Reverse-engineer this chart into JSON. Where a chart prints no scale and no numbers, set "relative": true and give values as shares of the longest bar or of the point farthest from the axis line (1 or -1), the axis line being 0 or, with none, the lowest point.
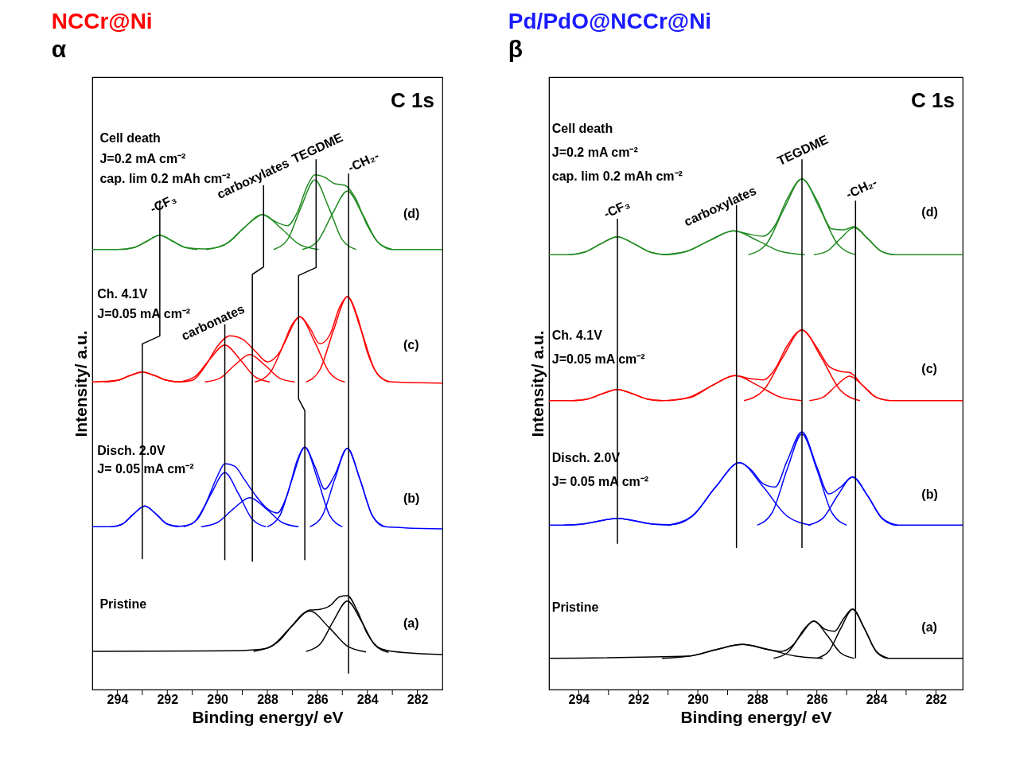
{
  "chart_data": [
    {
      "type": "line",
      "title": "NCCr@Ni",
      "xlabel": "Binding energy/ eV",
      "ylabel": "Intensity/ a.u.",
      "relative": true,
      "xlim": [
        295,
        281
      ],
      "xticks": [
        294,
        {
          "value": 293,
          "label": null
        },
        292,
        {
          "value": 291,
          "label": null
        },
        290,
        {
          "value": 289,
          "label": null
        },
        288,
        {
          "value": 287,
          "label": null
        },
        286,
        {
          "value": 285,
          "label": null
        },
        284,
        {
          "value": 283,
          "label": null
        },
        282
      ],
      "series": [
        {
          "color": "#228b22",
          "x": [
            295,
            294,
            293.3,
            292.8,
            292.3,
            291.8,
            291.3,
            290.5,
            290,
            289.5,
            289,
            288.5,
            288.2,
            287.7,
            287.2,
            286.8,
            286.4,
            286.1,
            285.7,
            285.3,
            284.9,
            284.5,
            284,
            283.5,
            283,
            281
          ],
          "values": [
            0.83,
            0.83,
            0.834,
            0.846,
            0.857,
            0.846,
            0.834,
            0.831,
            0.834,
            0.845,
            0.868,
            0.888,
            0.896,
            0.883,
            0.875,
            0.9,
            0.95,
            0.971,
            0.966,
            0.954,
            0.951,
            0.929,
            0.875,
            0.84,
            0.83,
            0.83
          ]
        },
        {
          "color": "#228b22",
          "x": [
            293.8,
            293.3,
            292.8,
            292.3,
            291.8,
            291.3,
            290.8
          ],
          "values": [
            0.83,
            0.834,
            0.846,
            0.857,
            0.846,
            0.834,
            0.83
          ]
        },
        {
          "color": "#228b22",
          "x": [
            290.45,
            289.7,
            288.95,
            288.2,
            287.45,
            286.7,
            285.95
          ],
          "values": [
            0.83,
            0.839,
            0.87,
            0.896,
            0.87,
            0.839,
            0.83
          ]
        },
        {
          "color": "#228b22",
          "x": [
            287.75,
            287.2,
            286.65,
            286.1,
            285.55,
            285,
            284.45
          ],
          "values": [
            0.83,
            0.848,
            0.91,
            0.961,
            0.91,
            0.848,
            0.83
          ]
        },
        {
          "color": "#228b22",
          "x": [
            286.6,
            286,
            285.4,
            284.8,
            284.2,
            283.6,
            283
          ],
          "values": [
            0.83,
            0.845,
            0.897,
            0.94,
            0.897,
            0.845,
            0.83
          ]
        },
        {
          "color": "#ff0000",
          "x": [
            295,
            294,
            293.5,
            293,
            292.5,
            292,
            291.5,
            291,
            290.5,
            290,
            289.5,
            289,
            288.5,
            288,
            287.5,
            287,
            286.7,
            286.3,
            285.9,
            285.5,
            285.1,
            284.8,
            284.4,
            284,
            283.5,
            283,
            281
          ],
          "values": [
            0.58,
            0.583,
            0.592,
            0.599,
            0.592,
            0.583,
            0.58,
            0.583,
            0.609,
            0.647,
            0.667,
            0.661,
            0.639,
            0.618,
            0.637,
            0.689,
            0.703,
            0.682,
            0.652,
            0.669,
            0.722,
            0.741,
            0.704,
            0.636,
            0.59,
            0.58,
            0.578
          ]
        },
        {
          "color": "#ff0000",
          "x": [
            294.5,
            294,
            293.5,
            293,
            292.5,
            292,
            291.5
          ],
          "values": [
            0.58,
            0.583,
            0.592,
            0.599,
            0.592,
            0.583,
            0.58
          ]
        },
        {
          "color": "#ff0000",
          "x": [
            291.5,
            290.9,
            290.3,
            289.7,
            289.1,
            288.5,
            287.9
          ],
          "values": [
            0.58,
            0.59,
            0.623,
            0.65,
            0.623,
            0.59,
            0.58
          ]
        },
        {
          "color": "#ff0000",
          "x": [
            290.5,
            289.9,
            289.3,
            288.7,
            288.1,
            287.5,
            286.9
          ],
          "values": [
            0.58,
            0.587,
            0.612,
            0.632,
            0.612,
            0.587,
            0.58
          ]
        },
        {
          "color": "#ff0000",
          "x": [
            288.5,
            287.9,
            287.3,
            286.7,
            286.1,
            285.5,
            284.9
          ],
          "values": [
            0.58,
            0.597,
            0.655,
            0.703,
            0.655,
            0.597,
            0.58
          ]
        },
        {
          "color": "#ff0000",
          "x": [
            286.45,
            285.9,
            285.35,
            284.8,
            284.25,
            283.7,
            283.15
          ],
          "values": [
            0.58,
            0.603,
            0.678,
            0.741,
            0.678,
            0.603,
            0.58
          ]
        },
        {
          "color": "#0000ff",
          "x": [
            295,
            294.2,
            293.8,
            293.35,
            292.9,
            292.45,
            292,
            291.5,
            291,
            290.5,
            290,
            289.7,
            289.3,
            288.9,
            288.5,
            288,
            287.6,
            287.2,
            286.8,
            286.5,
            286.1,
            285.7,
            285.3,
            284.8,
            284.3,
            283.8,
            283.3,
            281
          ],
          "values": [
            0.307,
            0.307,
            0.312,
            0.331,
            0.346,
            0.331,
            0.312,
            0.308,
            0.313,
            0.347,
            0.402,
            0.426,
            0.421,
            0.395,
            0.368,
            0.341,
            0.333,
            0.368,
            0.433,
            0.457,
            0.421,
            0.378,
            0.405,
            0.455,
            0.397,
            0.328,
            0.307,
            0.303
          ]
        },
        {
          "color": "#0000ff",
          "x": [
            294.25,
            293.8,
            293.35,
            292.9,
            292.45,
            292,
            291.55
          ],
          "values": [
            0.307,
            0.312,
            0.331,
            0.346,
            0.331,
            0.312,
            0.307
          ]
        },
        {
          "color": "#0000ff",
          "x": [
            291.35,
            290.8,
            290.25,
            289.7,
            289.15,
            288.6,
            288.05
          ],
          "values": [
            0.307,
            0.321,
            0.369,
            0.409,
            0.369,
            0.321,
            0.307
          ]
        },
        {
          "color": "#0000ff",
          "x": [
            290.65,
            290,
            289.35,
            288.7,
            288.05,
            287.4,
            286.75
          ],
          "values": [
            0.307,
            0.315,
            0.341,
            0.362,
            0.341,
            0.315,
            0.307
          ]
        },
        {
          "color": "#0000ff",
          "x": [
            288,
            287.5,
            287,
            286.5,
            286,
            285.5,
            285
          ],
          "values": [
            0.307,
            0.328,
            0.398,
            0.457,
            0.398,
            0.328,
            0.307
          ]
        },
        {
          "color": "#0000ff",
          "x": [
            286.3,
            285.8,
            285.3,
            284.8,
            284.3,
            283.8,
            283.3
          ],
          "values": [
            0.307,
            0.328,
            0.397,
            0.455,
            0.397,
            0.328,
            0.307
          ]
        },
        {
          "color": "#000000",
          "x": [
            295,
            289.5,
            288.5,
            288,
            287.5,
            287,
            286.6,
            286.3,
            285.9,
            285.5,
            285.1,
            284.8,
            284.4,
            284,
            283.5,
            283,
            281
          ],
          "values": [
            0.072,
            0.073,
            0.075,
            0.078,
            0.093,
            0.121,
            0.142,
            0.15,
            0.151,
            0.158,
            0.175,
            0.177,
            0.148,
            0.105,
            0.078,
            0.072,
            0.066
          ]
        },
        {
          "color": "#000000",
          "x": [
            288.55,
            287.8,
            287.05,
            286.3,
            285.55,
            284.8,
            284.05
          ],
          "values": [
            0.072,
            0.083,
            0.118,
            0.148,
            0.118,
            0.082,
            0.071
          ]
        },
        {
          "color": "#000000",
          "x": [
            286.45,
            285.9,
            285.35,
            284.8,
            284.25,
            283.7,
            283.15
          ],
          "values": [
            0.072,
            0.085,
            0.13,
            0.167,
            0.13,
            0.084,
            0.07
          ]
        },
        {
          "color": "#000000",
          "x": [
            292.3,
            292.3,
            293,
            293
          ],
          "values": [
            0.923,
            0.667,
            0.652,
            0.246
          ]
        },
        {
          "color": "#000000",
          "x": [
            288.15,
            288.15,
            288.6,
            288.6
          ],
          "values": [
            0.951,
            0.797,
            0.783,
            0.241
          ]
        },
        {
          "color": "#000000",
          "x": [
            286.05,
            286.05,
            286.75,
            286.75,
            286.5,
            286.5
          ],
          "values": [
            1,
            0.796,
            0.781,
            0.548,
            0.526,
            0.244
          ]
        },
        {
          "color": "#000000",
          "x": [
            289.7,
            289.7
          ],
          "values": [
            0.689,
            0.244
          ]
        },
        {
          "color": "#000000",
          "x": [
            284.75,
            284.75
          ],
          "values": [
            0.973,
            0.03
          ]
        }
      ],
      "annotations": [
        "α",
        "C 1s",
        "Cell death",
        "J=0.2 mA cm⁻²",
        "cap. lim 0.2 mAh cm⁻²",
        "-CF₃",
        "carboxylates",
        "TEGDME",
        "-CH₂-",
        "(d)",
        "Ch. 4.1V",
        "J=0.05 mA cm⁻²",
        "carbonates",
        "(c)",
        "Disch. 2.0V",
        "J= 0.05 mA cm⁻²",
        "(b)",
        "Pristine",
        "(a)"
      ]
    },
    {
      "type": "line",
      "title": "Pd/PdO@NCCr@Ni",
      "xlabel": "Binding energy/ eV",
      "ylabel": "Intensity/ a.u.",
      "relative": true,
      "xlim": [
        295,
        281.1
      ],
      "xticks": [
        294,
        {
          "value": 293,
          "label": null
        },
        292,
        {
          "value": 291,
          "label": null
        },
        290,
        {
          "value": 289,
          "label": null
        },
        288,
        {
          "value": 287,
          "label": null
        },
        286,
        {
          "value": 285,
          "label": null
        },
        284,
        {
          "value": 283,
          "label": null
        },
        282
      ],
      "series": [
        {
          "color": "#228b22",
          "x": [
            295,
            294.35,
            293.8,
            293.25,
            292.7,
            292.15,
            291.6,
            291.05,
            290.4,
            289.6,
            288.8,
            288.3,
            287.8,
            287.4,
            287,
            286.5,
            286,
            285.5,
            285.1,
            284.75,
            284.3,
            283.85,
            283.4,
            281.1
          ],
          "values": [
            0.82,
            0.82,
            0.825,
            0.841,
            0.854,
            0.841,
            0.825,
            0.82,
            0.826,
            0.847,
            0.865,
            0.859,
            0.855,
            0.876,
            0.925,
            0.963,
            0.923,
            0.869,
            0.867,
            0.873,
            0.851,
            0.827,
            0.82,
            0.82
          ]
        },
        {
          "color": "#228b22",
          "x": [
            294.35,
            293.8,
            293.25,
            292.7,
            292.15,
            291.6,
            291.05
          ],
          "values": [
            0.82,
            0.825,
            0.841,
            0.854,
            0.841,
            0.825,
            0.82
          ]
        },
        {
          "color": "#228b22",
          "x": [
            291.2,
            290.4,
            289.6,
            288.8,
            288,
            287.2,
            286.4
          ],
          "values": [
            0.82,
            0.826,
            0.847,
            0.865,
            0.847,
            0.826,
            0.82
          ]
        },
        {
          "color": "#228b22",
          "x": [
            288.3,
            287.7,
            287.1,
            286.5,
            285.9,
            285.3,
            284.7
          ],
          "values": [
            0.82,
            0.84,
            0.907,
            0.963,
            0.907,
            0.84,
            0.82
          ]
        },
        {
          "color": "#228b22",
          "x": [
            286.1,
            285.65,
            285.2,
            284.75,
            284.3,
            283.85,
            283.4
          ],
          "values": [
            0.82,
            0.827,
            0.851,
            0.871,
            0.851,
            0.827,
            0.82
          ]
        },
        {
          "color": "#ff0000",
          "x": [
            295,
            294.2,
            293.7,
            293.2,
            292.7,
            292.2,
            291.7,
            291.2,
            290.25,
            289.5,
            288.75,
            288.2,
            287.8,
            287.4,
            287,
            286.5,
            286,
            285.6,
            285.2,
            284.9,
            284.45,
            284,
            283.5,
            281.1
          ],
          "values": [
            0.545,
            0.545,
            0.548,
            0.558,
            0.566,
            0.558,
            0.548,
            0.545,
            0.551,
            0.574,
            0.592,
            0.586,
            0.584,
            0.605,
            0.648,
            0.678,
            0.645,
            0.61,
            0.6,
            0.598,
            0.573,
            0.551,
            0.545,
            0.545
          ]
        },
        {
          "color": "#ff0000",
          "x": [
            294.2,
            293.7,
            293.2,
            292.7,
            292.2,
            291.7,
            291.2
          ],
          "values": [
            0.545,
            0.548,
            0.558,
            0.566,
            0.558,
            0.548,
            0.545
          ]
        },
        {
          "color": "#ff0000",
          "x": [
            291,
            290.25,
            289.5,
            288.75,
            288,
            287.25,
            286.5
          ],
          "values": [
            0.545,
            0.552,
            0.574,
            0.592,
            0.574,
            0.552,
            0.545
          ]
        },
        {
          "color": "#ff0000",
          "x": [
            288.45,
            287.8,
            287.15,
            286.5,
            285.85,
            285.2,
            284.55
          ],
          "values": [
            0.545,
            0.564,
            0.626,
            0.678,
            0.626,
            0.564,
            0.545
          ]
        },
        {
          "color": "#ff0000",
          "x": [
            286.25,
            285.8,
            285.35,
            284.9,
            284.45,
            284,
            283.55
          ],
          "values": [
            0.545,
            0.551,
            0.573,
            0.591,
            0.573,
            0.551,
            0.545
          ]
        },
        {
          "color": "#0000ff",
          "x": [
            295,
            294.5,
            293.9,
            293.3,
            292.7,
            292.1,
            291.5,
            290.9,
            290.2,
            289.4,
            288.6,
            288.2,
            287.8,
            287.4,
            287,
            286.5,
            286,
            285.6,
            285.2,
            284.8,
            284.3,
            283.8,
            283.3,
            281.1
          ],
          "values": [
            0.31,
            0.31,
            0.312,
            0.318,
            0.323,
            0.318,
            0.312,
            0.311,
            0.326,
            0.382,
            0.428,
            0.414,
            0.388,
            0.382,
            0.431,
            0.486,
            0.42,
            0.369,
            0.382,
            0.401,
            0.366,
            0.322,
            0.31,
            0.31
          ]
        },
        {
          "color": "#0000ff",
          "x": [
            294.5,
            293.9,
            293.3,
            292.7,
            292.1,
            291.5,
            290.9
          ],
          "values": [
            0.31,
            0.312,
            0.318,
            0.323,
            0.318,
            0.312,
            0.31
          ]
        },
        {
          "color": "#0000ff",
          "x": [
            291,
            290.2,
            289.4,
            288.6,
            287.8,
            287,
            286.2
          ],
          "values": [
            0.31,
            0.327,
            0.382,
            0.428,
            0.382,
            0.327,
            0.31
          ]
        },
        {
          "color": "#0000ff",
          "x": [
            288,
            287.5,
            287,
            286.5,
            286,
            285.5,
            285
          ],
          "values": [
            0.31,
            0.334,
            0.415,
            0.482,
            0.415,
            0.334,
            0.31
          ]
        },
        {
          "color": "#0000ff",
          "x": [
            286.3,
            285.8,
            285.3,
            284.8,
            284.3,
            283.8,
            283.3
          ],
          "values": [
            0.31,
            0.323,
            0.366,
            0.401,
            0.366,
            0.323,
            0.31
          ]
        },
        {
          "color": "#000000",
          "x": [
            295,
            290.3,
            289.4,
            288.5,
            287.6,
            287.2,
            286.8,
            286.4,
            286.1,
            285.7,
            285.4,
            285.1,
            284.8,
            284.4,
            284,
            283.6,
            281.1
          ],
          "values": [
            0.059,
            0.063,
            0.075,
            0.085,
            0.075,
            0.072,
            0.084,
            0.116,
            0.129,
            0.113,
            0.11,
            0.134,
            0.152,
            0.115,
            0.071,
            0.059,
            0.059
          ]
        },
        {
          "color": "#000000",
          "x": [
            291.2,
            290.3,
            289.4,
            288.5,
            287.6,
            286.7,
            285.8
          ],
          "values": [
            0.059,
            0.063,
            0.075,
            0.085,
            0.075,
            0.063,
            0.059
          ]
        },
        {
          "color": "#000000",
          "x": [
            287.45,
            287,
            286.55,
            286.1,
            285.65,
            285.2,
            284.75
          ],
          "values": [
            0.059,
            0.069,
            0.102,
            0.129,
            0.102,
            0.069,
            0.059
          ]
        },
        {
          "color": "#000000",
          "x": [
            286,
            285.6,
            285.2,
            284.8,
            284.4,
            284,
            283.6
          ],
          "values": [
            0.059,
            0.072,
            0.115,
            0.151,
            0.115,
            0.072,
            0.059
          ]
        },
        {
          "color": "#000000",
          "x": [
            292.7,
            292.7
          ],
          "values": [
            0.888,
            0.275
          ]
        },
        {
          "color": "#000000",
          "x": [
            288.7,
            288.7
          ],
          "values": [
            0.914,
            0.267
          ]
        },
        {
          "color": "#000000",
          "x": [
            286.5,
            286.5
          ],
          "values": [
            1,
            0.267
          ]
        },
        {
          "color": "#000000",
          "x": [
            284.7,
            284.7
          ],
          "values": [
            0.922,
            0.059
          ]
        }
      ],
      "annotations": [
        "β",
        "C 1s",
        "Cell death",
        "J=0.2 mA cm⁻²",
        "cap. lim 0.2 mAh cm⁻²",
        "-CF₃",
        "carboxylates",
        "TEGDME",
        "-CH₂-",
        "(d)",
        "Ch. 4.1V",
        "J=0.05 mA cm⁻²",
        "(c)",
        "Disch. 2.0V",
        "J= 0.05 mA cm⁻²",
        "(b)",
        "Pristine",
        "(a)"
      ]
    }
  ]
}
